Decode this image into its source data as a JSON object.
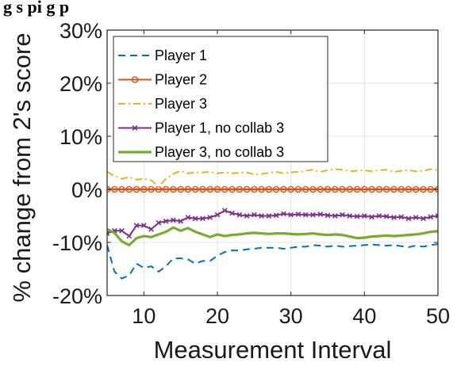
{
  "caption_fragment": "g      s     pi g  p",
  "chart_data": {
    "type": "line",
    "xlabel": "Measurement Interval",
    "ylabel": "% change from 2's score",
    "xlim": [
      5,
      50
    ],
    "ylim": [
      -20,
      30
    ],
    "x_ticks": [
      10,
      20,
      30,
      40,
      50
    ],
    "y_ticks": [
      -20,
      -10,
      0,
      10,
      20,
      30
    ],
    "x_tick_labels": [
      "10",
      "20",
      "30",
      "40",
      "50"
    ],
    "y_tick_labels": [
      "-20%",
      "-10%",
      "0%",
      "10%",
      "20%",
      "30%"
    ],
    "grid": true,
    "legend_position": "top-left",
    "x": [
      5,
      6,
      7,
      8,
      9,
      10,
      11,
      12,
      13,
      14,
      15,
      16,
      17,
      18,
      19,
      20,
      21,
      22,
      23,
      24,
      25,
      26,
      27,
      28,
      29,
      30,
      31,
      32,
      33,
      34,
      35,
      36,
      37,
      38,
      39,
      40,
      41,
      42,
      43,
      44,
      45,
      46,
      47,
      48,
      49,
      50
    ],
    "series": [
      {
        "name": "Player 1",
        "color": "#0072BD",
        "dash": "dashed",
        "marker": "none",
        "values": [
          -10.5,
          -15.5,
          -16.8,
          -16.2,
          -14.0,
          -14.8,
          -14.5,
          -15.5,
          -14.5,
          -13.0,
          -13.0,
          -13.2,
          -14.0,
          -13.5,
          -13.5,
          -12.5,
          -11.8,
          -11.5,
          -11.5,
          -11.3,
          -11.2,
          -11.0,
          -11.0,
          -11.0,
          -11.2,
          -11.0,
          -10.8,
          -10.8,
          -10.5,
          -10.6,
          -10.8,
          -10.6,
          -10.8,
          -10.7,
          -10.6,
          -10.5,
          -10.4,
          -10.5,
          -10.6,
          -10.5,
          -10.7,
          -10.9,
          -10.6,
          -10.8,
          -10.5,
          -10.3
        ]
      },
      {
        "name": "Player 2",
        "color": "#D95319",
        "dash": "solid",
        "marker": "circle",
        "values": [
          0,
          0,
          0,
          0,
          0,
          0,
          0,
          0,
          0,
          0,
          0,
          0,
          0,
          0,
          0,
          0,
          0,
          0,
          0,
          0,
          0,
          0,
          0,
          0,
          0,
          0,
          0,
          0,
          0,
          0,
          0,
          0,
          0,
          0,
          0,
          0,
          0,
          0,
          0,
          0,
          0,
          0,
          0,
          0,
          0,
          0
        ]
      },
      {
        "name": "Player 3",
        "color": "#EDB120",
        "dash": "dashdot",
        "marker": "none",
        "values": [
          3.3,
          2.5,
          2.0,
          2.3,
          1.8,
          2.0,
          1.7,
          0.5,
          2.0,
          2.9,
          3.5,
          3.0,
          3.2,
          3.2,
          3.3,
          3.0,
          3.2,
          3.0,
          3.1,
          3.2,
          2.8,
          2.9,
          3.1,
          3.3,
          3.0,
          3.2,
          3.3,
          3.5,
          3.7,
          3.3,
          3.6,
          3.8,
          3.7,
          3.4,
          3.5,
          3.6,
          3.4,
          3.6,
          3.7,
          3.3,
          3.5,
          3.6,
          3.4,
          3.5,
          3.8,
          3.6
        ]
      },
      {
        "name": "Player 1, no collab 3",
        "color": "#7E2F8E",
        "dash": "solid",
        "marker": "x",
        "values": [
          -8.3,
          -7.8,
          -7.8,
          -8.8,
          -6.8,
          -6.8,
          -7.5,
          -6.3,
          -6.0,
          -5.8,
          -6.0,
          -5.3,
          -5.5,
          -5.5,
          -5.3,
          -4.8,
          -4.0,
          -4.5,
          -4.8,
          -5.0,
          -4.8,
          -5.0,
          -5.0,
          -4.9,
          -4.6,
          -4.8,
          -4.7,
          -4.8,
          -4.8,
          -4.7,
          -4.9,
          -5.0,
          -4.8,
          -5.0,
          -5.1,
          -5.0,
          -5.2,
          -5.0,
          -5.1,
          -5.3,
          -5.2,
          -5.5,
          -5.3,
          -5.5,
          -5.2,
          -5.0
        ]
      },
      {
        "name": "Player 3, no collab 3",
        "color": "#77AC30",
        "dash": "solid",
        "marker": "none",
        "values": [
          -7.5,
          -8.2,
          -9.8,
          -10.5,
          -9.2,
          -8.8,
          -9.0,
          -8.5,
          -8.0,
          -7.2,
          -7.8,
          -7.3,
          -8.0,
          -8.5,
          -9.0,
          -8.5,
          -8.8,
          -8.6,
          -8.5,
          -8.3,
          -8.2,
          -8.3,
          -8.4,
          -8.3,
          -8.3,
          -8.4,
          -8.5,
          -8.4,
          -8.3,
          -8.5,
          -8.6,
          -8.5,
          -8.6,
          -8.9,
          -9.2,
          -9.1,
          -8.9,
          -8.8,
          -8.7,
          -8.8,
          -8.7,
          -8.6,
          -8.5,
          -8.3,
          -8.0,
          -7.9
        ]
      }
    ]
  }
}
